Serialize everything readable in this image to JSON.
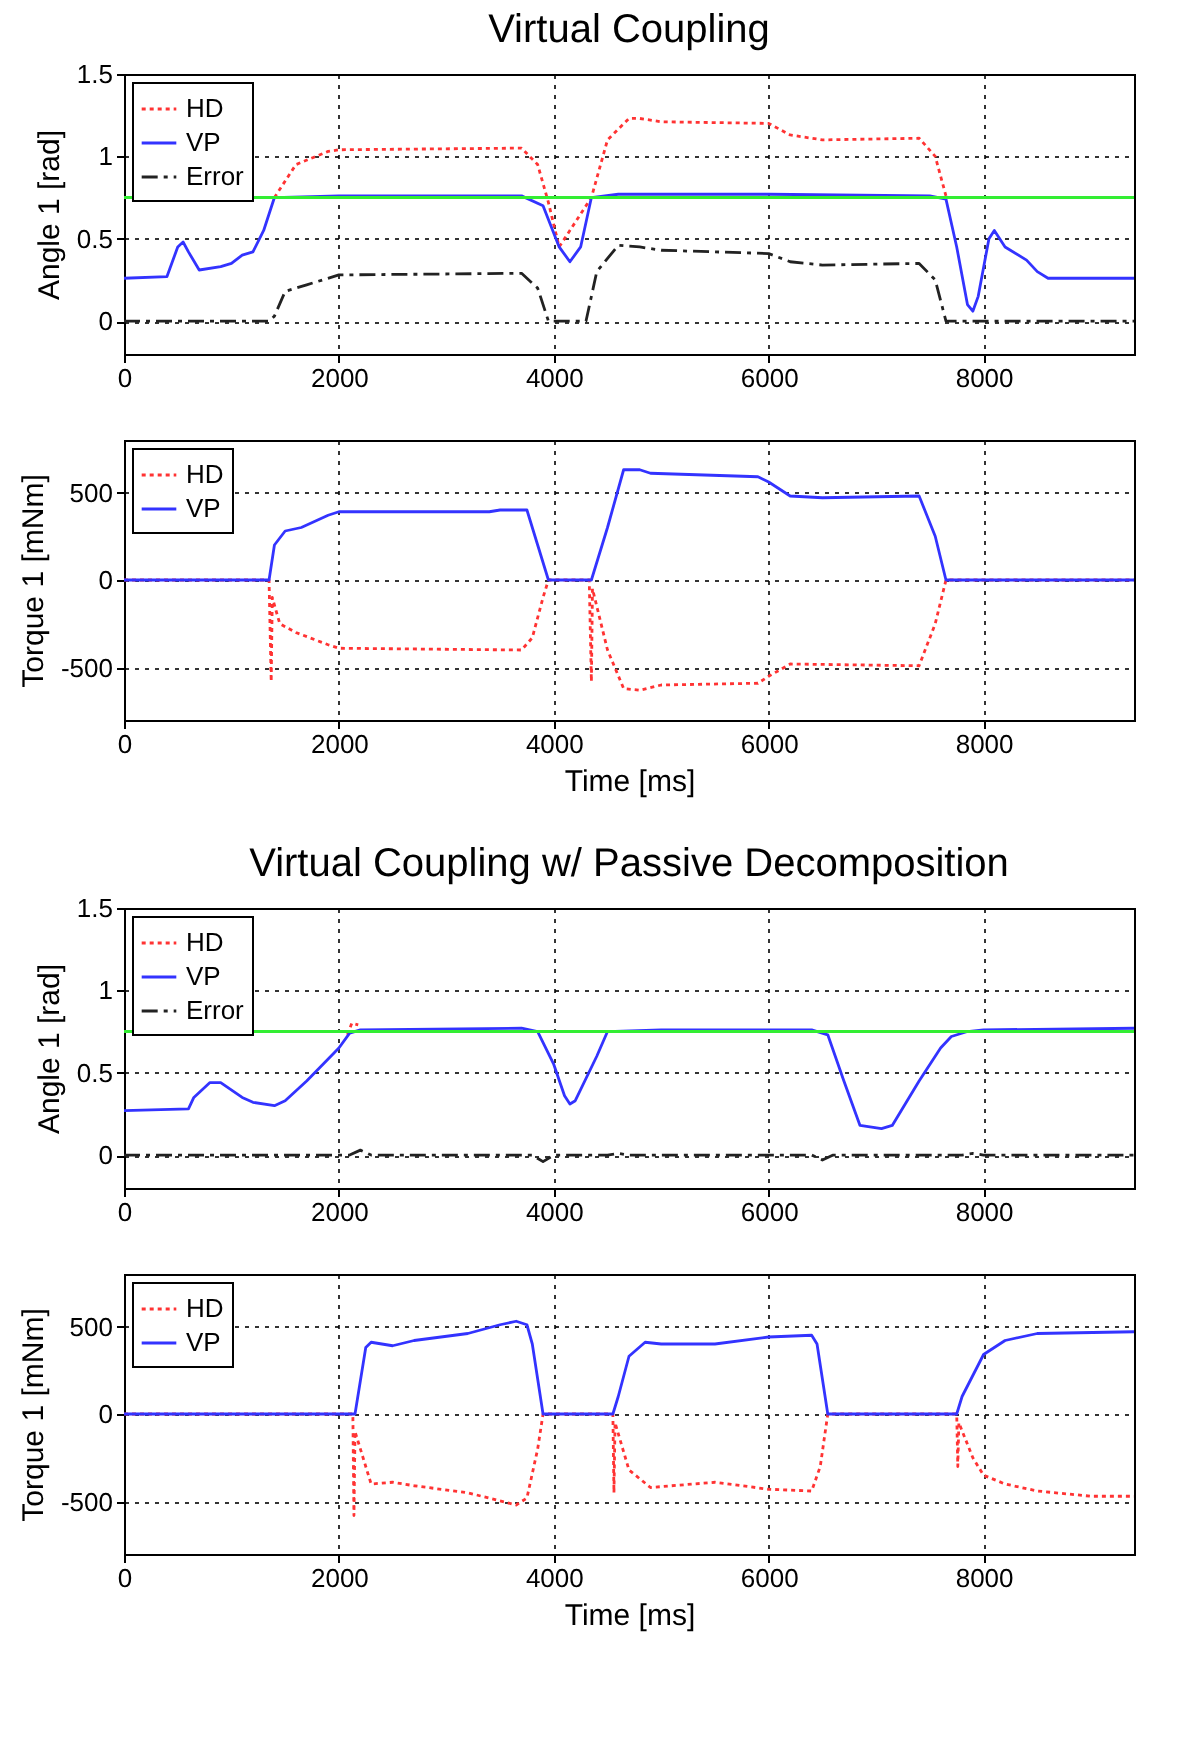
{
  "chart_data": [
    {
      "type": "line",
      "title": "Virtual Coupling",
      "ylabel": "Angle 1 [rad]",
      "xlim": [
        0,
        9400
      ],
      "xticks": [
        0,
        2000,
        4000,
        6000,
        8000
      ],
      "ylim": [
        -0.2,
        1.5
      ],
      "yticks": [
        0,
        0.5,
        1,
        1.5
      ],
      "grid": true,
      "legend": "top left",
      "ref_lines": [
        {
          "axis": "y",
          "value": 0.75,
          "color": "#33ee33"
        }
      ],
      "series": [
        {
          "name": "HD",
          "color": "#ff3333",
          "line_style": "dotted",
          "x": [
            1400,
            1600,
            1900,
            2000,
            3700,
            3850,
            3950,
            4050,
            4350,
            4500,
            4700,
            4800,
            5000,
            6000,
            6200,
            6500,
            7400,
            7550,
            7650
          ],
          "values": [
            0.75,
            0.95,
            1.03,
            1.04,
            1.05,
            0.95,
            0.72,
            0.45,
            0.75,
            1.1,
            1.23,
            1.23,
            1.21,
            1.2,
            1.13,
            1.1,
            1.11,
            1.0,
            0.76
          ]
        },
        {
          "name": "VP",
          "color": "#3333ff",
          "line_style": "solid",
          "x": [
            0,
            400,
            500,
            550,
            600,
            700,
            900,
            1000,
            1100,
            1200,
            1300,
            1400,
            2000,
            3700,
            3900,
            4050,
            4150,
            4250,
            4350,
            4600,
            6000,
            7500,
            7650,
            7750,
            7850,
            7900,
            7950,
            8050,
            8100,
            8200,
            8400,
            8500,
            8600,
            9400
          ],
          "values": [
            0.26,
            0.27,
            0.45,
            0.48,
            0.42,
            0.31,
            0.33,
            0.35,
            0.4,
            0.42,
            0.55,
            0.75,
            0.76,
            0.76,
            0.7,
            0.45,
            0.36,
            0.45,
            0.75,
            0.77,
            0.77,
            0.76,
            0.74,
            0.45,
            0.1,
            0.06,
            0.15,
            0.5,
            0.55,
            0.45,
            0.37,
            0.3,
            0.26,
            0.26
          ]
        },
        {
          "name": "Error",
          "color": "#222222",
          "line_style": "dashed",
          "x": [
            0,
            1350,
            1400,
            1500,
            1700,
            2000,
            3700,
            3850,
            3950,
            4300,
            4400,
            4600,
            4800,
            5000,
            6000,
            6200,
            6500,
            7400,
            7550,
            7650,
            9400
          ],
          "values": [
            0,
            0,
            0.03,
            0.18,
            0.22,
            0.28,
            0.29,
            0.2,
            0,
            0,
            0.3,
            0.46,
            0.45,
            0.43,
            0.41,
            0.36,
            0.34,
            0.35,
            0.25,
            0,
            0
          ]
        }
      ]
    },
    {
      "type": "line",
      "xlabel": "Time [ms]",
      "ylabel": "Torque 1 [mNm]",
      "xlim": [
        0,
        9400
      ],
      "xticks": [
        0,
        2000,
        4000,
        6000,
        8000
      ],
      "ylim": [
        -800,
        800
      ],
      "yticks": [
        -500,
        0,
        500
      ],
      "grid": true,
      "legend": "top left",
      "series": [
        {
          "name": "HD",
          "color": "#ff3333",
          "line_style": "dotted",
          "x": [
            0,
            1350,
            1370,
            1380,
            1450,
            1600,
            1900,
            2000,
            3700,
            3800,
            3900,
            3950,
            4330,
            4350,
            4360,
            4500,
            4650,
            4800,
            5000,
            5900,
            6000,
            6200,
            7400,
            7550,
            7650,
            9400
          ],
          "values": [
            0,
            0,
            -580,
            -100,
            -250,
            -300,
            -370,
            -390,
            -400,
            -330,
            -100,
            0,
            0,
            -580,
            -50,
            -400,
            -620,
            -630,
            -600,
            -590,
            -550,
            -480,
            -490,
            -250,
            0,
            0
          ]
        },
        {
          "name": "VP",
          "color": "#3333ff",
          "line_style": "solid",
          "x": [
            0,
            1350,
            1400,
            1500,
            1650,
            1900,
            2000,
            3400,
            3500,
            3750,
            3850,
            3950,
            4350,
            4500,
            4650,
            4800,
            4900,
            5900,
            6000,
            6200,
            6500,
            7400,
            7550,
            7650,
            9400
          ],
          "values": [
            0,
            0,
            200,
            280,
            300,
            370,
            390,
            390,
            400,
            400,
            200,
            0,
            0,
            300,
            630,
            630,
            610,
            590,
            560,
            480,
            470,
            480,
            250,
            0,
            0
          ]
        }
      ]
    },
    {
      "type": "line",
      "title": "Virtual Coupling w/ Passive Decomposition",
      "ylabel": "Angle 1 [rad]",
      "xlim": [
        0,
        9400
      ],
      "xticks": [
        0,
        2000,
        4000,
        6000,
        8000
      ],
      "ylim": [
        -0.2,
        1.5
      ],
      "yticks": [
        0,
        0.5,
        1,
        1.5
      ],
      "grid": true,
      "legend": "top left",
      "ref_lines": [
        {
          "axis": "y",
          "value": 0.75,
          "color": "#33ee33"
        }
      ],
      "series": [
        {
          "name": "HD",
          "color": "#ff3333",
          "line_style": "dotted",
          "x": [
            2080,
            2120,
            2180
          ],
          "values": [
            0.73,
            0.8,
            0.79
          ]
        },
        {
          "name": "VP",
          "color": "#3333ff",
          "line_style": "solid",
          "x": [
            0,
            600,
            650,
            800,
            900,
            1100,
            1200,
            1400,
            1500,
            1700,
            2000,
            2100,
            2200,
            3700,
            3850,
            4000,
            4100,
            4150,
            4200,
            4400,
            4500,
            5000,
            6400,
            6550,
            6700,
            6850,
            7050,
            7150,
            7400,
            7600,
            7700,
            7850,
            8000,
            9400
          ],
          "values": [
            0.27,
            0.28,
            0.35,
            0.44,
            0.44,
            0.35,
            0.32,
            0.3,
            0.33,
            0.45,
            0.65,
            0.74,
            0.76,
            0.77,
            0.75,
            0.55,
            0.36,
            0.31,
            0.33,
            0.6,
            0.75,
            0.76,
            0.76,
            0.73,
            0.45,
            0.18,
            0.16,
            0.18,
            0.45,
            0.65,
            0.72,
            0.75,
            0.76,
            0.77
          ]
        },
        {
          "name": "Error",
          "color": "#222222",
          "line_style": "dashed",
          "x": [
            0,
            2100,
            2200,
            2300,
            3800,
            3900,
            4000,
            4500,
            4600,
            4700,
            6400,
            6500,
            6600,
            7800,
            7900,
            8000,
            9400
          ],
          "values": [
            0,
            0,
            0.03,
            0,
            0,
            -0.04,
            0,
            0,
            0.01,
            0,
            0,
            -0.03,
            0,
            0,
            0.01,
            0,
            0
          ]
        }
      ]
    },
    {
      "type": "line",
      "xlabel": "Time [ms]",
      "ylabel": "Torque 1 [mNm]",
      "xlim": [
        0,
        9400
      ],
      "xticks": [
        0,
        2000,
        4000,
        6000,
        8000
      ],
      "ylim": [
        -800,
        800
      ],
      "yticks": [
        -500,
        0,
        500
      ],
      "grid": true,
      "legend": "top left",
      "series": [
        {
          "name": "HD",
          "color": "#ff3333",
          "line_style": "dotted",
          "x": [
            0,
            2130,
            2140,
            2150,
            2250,
            2300,
            2500,
            2700,
            3200,
            3650,
            3750,
            3850,
            3900,
            4550,
            4560,
            4570,
            4700,
            4900,
            5500,
            6000,
            6400,
            6480,
            6550,
            7750,
            7760,
            7770,
            7900,
            8000,
            8200,
            8500,
            9000,
            9400
          ],
          "values": [
            0,
            0,
            -580,
            -100,
            -300,
            -400,
            -390,
            -410,
            -450,
            -520,
            -480,
            -200,
            0,
            0,
            -450,
            -50,
            -320,
            -420,
            -390,
            -430,
            -440,
            -300,
            0,
            0,
            -300,
            -50,
            -250,
            -350,
            -400,
            -440,
            -470,
            -470
          ]
        },
        {
          "name": "VP",
          "color": "#3333ff",
          "line_style": "solid",
          "x": [
            0,
            2150,
            2250,
            2300,
            2500,
            2700,
            3200,
            3500,
            3650,
            3750,
            3800,
            3900,
            4550,
            4600,
            4700,
            4850,
            5000,
            5500,
            6000,
            6400,
            6450,
            6550,
            7750,
            7800,
            8000,
            8200,
            8500,
            9400
          ],
          "values": [
            0,
            0,
            380,
            410,
            390,
            420,
            460,
            510,
            530,
            510,
            400,
            0,
            0,
            100,
            330,
            410,
            400,
            400,
            440,
            450,
            400,
            0,
            0,
            100,
            340,
            420,
            460,
            470
          ]
        }
      ]
    }
  ]
}
